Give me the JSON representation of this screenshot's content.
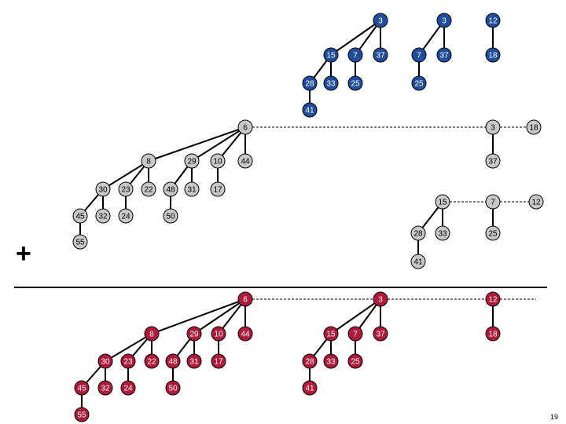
{
  "operator": "+",
  "page_number": "19",
  "colors": {
    "top_fill": "#1f4e9e",
    "mid_fill": "#c8c8c8",
    "bottom_fill": "#b0193a",
    "top_text": "#ffffff",
    "mid_text": "#000000",
    "bottom_text": "#ffffff"
  },
  "heaps": {
    "top": [
      {
        "v": "3",
        "c": [
          {
            "v": "15",
            "c": [
              {
                "v": "28",
                "c": [
                  {
                    "v": "41"
                  }
                ]
              },
              {
                "v": "33"
              }
            ]
          },
          {
            "v": "7",
            "c": [
              {
                "v": "25"
              }
            ]
          },
          {
            "v": "37"
          }
        ]
      },
      {
        "v": "3",
        "c": [
          {
            "v": "7",
            "c": [
              {
                "v": "25"
              }
            ]
          },
          {
            "v": "37"
          }
        ]
      },
      {
        "v": "12",
        "c": [
          {
            "v": "18"
          }
        ]
      }
    ],
    "middle_left": [
      {
        "v": "6",
        "c": [
          {
            "v": "8",
            "c": [
              {
                "v": "30",
                "c": [
                  {
                    "v": "45",
                    "c": [
                      {
                        "v": "55"
                      }
                    ]
                  },
                  {
                    "v": "32"
                  }
                ]
              },
              {
                "v": "23",
                "c": [
                  {
                    "v": "24"
                  }
                ]
              },
              {
                "v": "22"
              }
            ]
          },
          {
            "v": "29",
            "c": [
              {
                "v": "48",
                "c": [
                  {
                    "v": "50"
                  }
                ]
              },
              {
                "v": "31"
              }
            ]
          },
          {
            "v": "10",
            "c": [
              {
                "v": "17"
              }
            ]
          },
          {
            "v": "44"
          }
        ]
      }
    ],
    "middle_right_row1": [
      {
        "v": "3",
        "c": [
          {
            "v": "37"
          }
        ]
      },
      {
        "v": "18"
      }
    ],
    "middle_right_row2": [
      {
        "v": "15",
        "c": [
          {
            "v": "28",
            "c": [
              {
                "v": "41"
              }
            ]
          },
          {
            "v": "33"
          }
        ]
      },
      {
        "v": "7",
        "c": [
          {
            "v": "25"
          }
        ]
      },
      {
        "v": "12"
      }
    ],
    "bottom": [
      {
        "v": "6",
        "c": [
          {
            "v": "8",
            "c": [
              {
                "v": "30",
                "c": [
                  {
                    "v": "45",
                    "c": [
                      {
                        "v": "55"
                      }
                    ]
                  },
                  {
                    "v": "32"
                  }
                ]
              },
              {
                "v": "23",
                "c": [
                  {
                    "v": "24"
                  }
                ]
              },
              {
                "v": "22"
              }
            ]
          },
          {
            "v": "29",
            "c": [
              {
                "v": "48",
                "c": [
                  {
                    "v": "50"
                  }
                ]
              },
              {
                "v": "31"
              }
            ]
          },
          {
            "v": "10",
            "c": [
              {
                "v": "17"
              }
            ]
          },
          {
            "v": "44"
          }
        ]
      },
      {
        "v": "3",
        "c": [
          {
            "v": "15",
            "c": [
              {
                "v": "28",
                "c": [
                  {
                    "v": "41"
                  }
                ]
              },
              {
                "v": "33"
              }
            ]
          },
          {
            "v": "7",
            "c": [
              {
                "v": "25"
              }
            ]
          },
          {
            "v": "37"
          }
        ]
      },
      {
        "v": "12",
        "c": [
          {
            "v": "18"
          }
        ]
      }
    ]
  }
}
